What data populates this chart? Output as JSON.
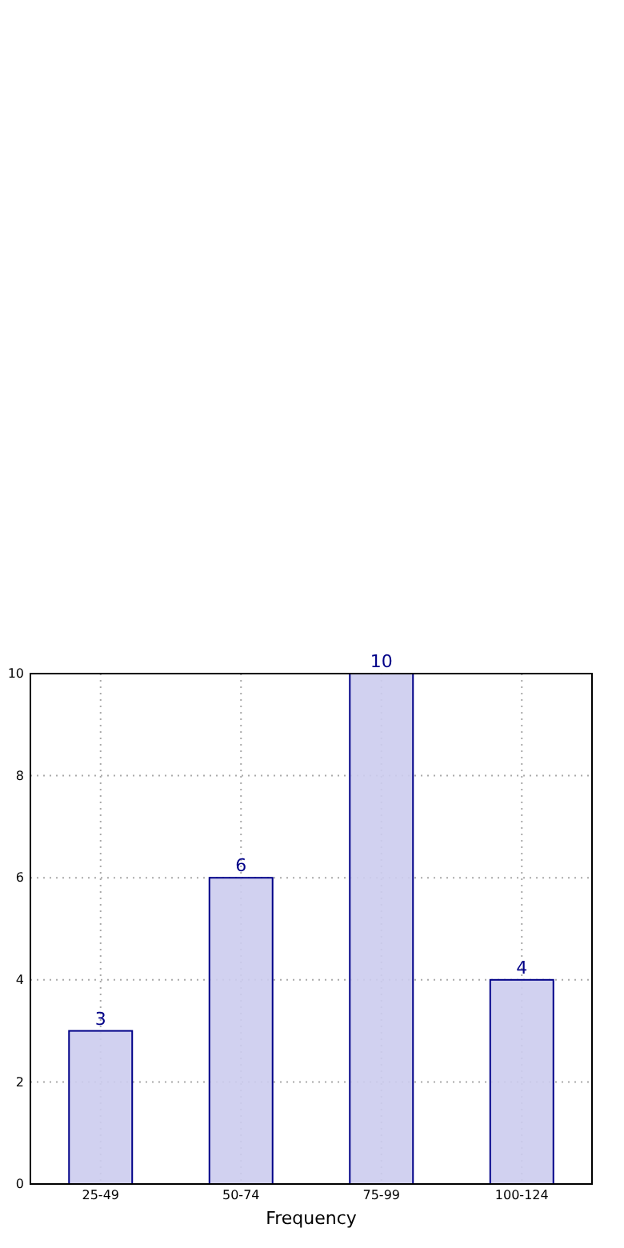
{
  "chart_data": {
    "type": "bar",
    "xlabel": "Frequency",
    "categories": [
      "25-49",
      "50-74",
      "75-99",
      "100-124"
    ],
    "values": [
      3,
      6,
      10,
      4
    ],
    "color": "#ccccee",
    "ylim": [
      0,
      10
    ],
    "yticks": [
      0,
      2,
      4,
      6,
      8,
      10
    ],
    "grid": true,
    "data_labels": true
  }
}
